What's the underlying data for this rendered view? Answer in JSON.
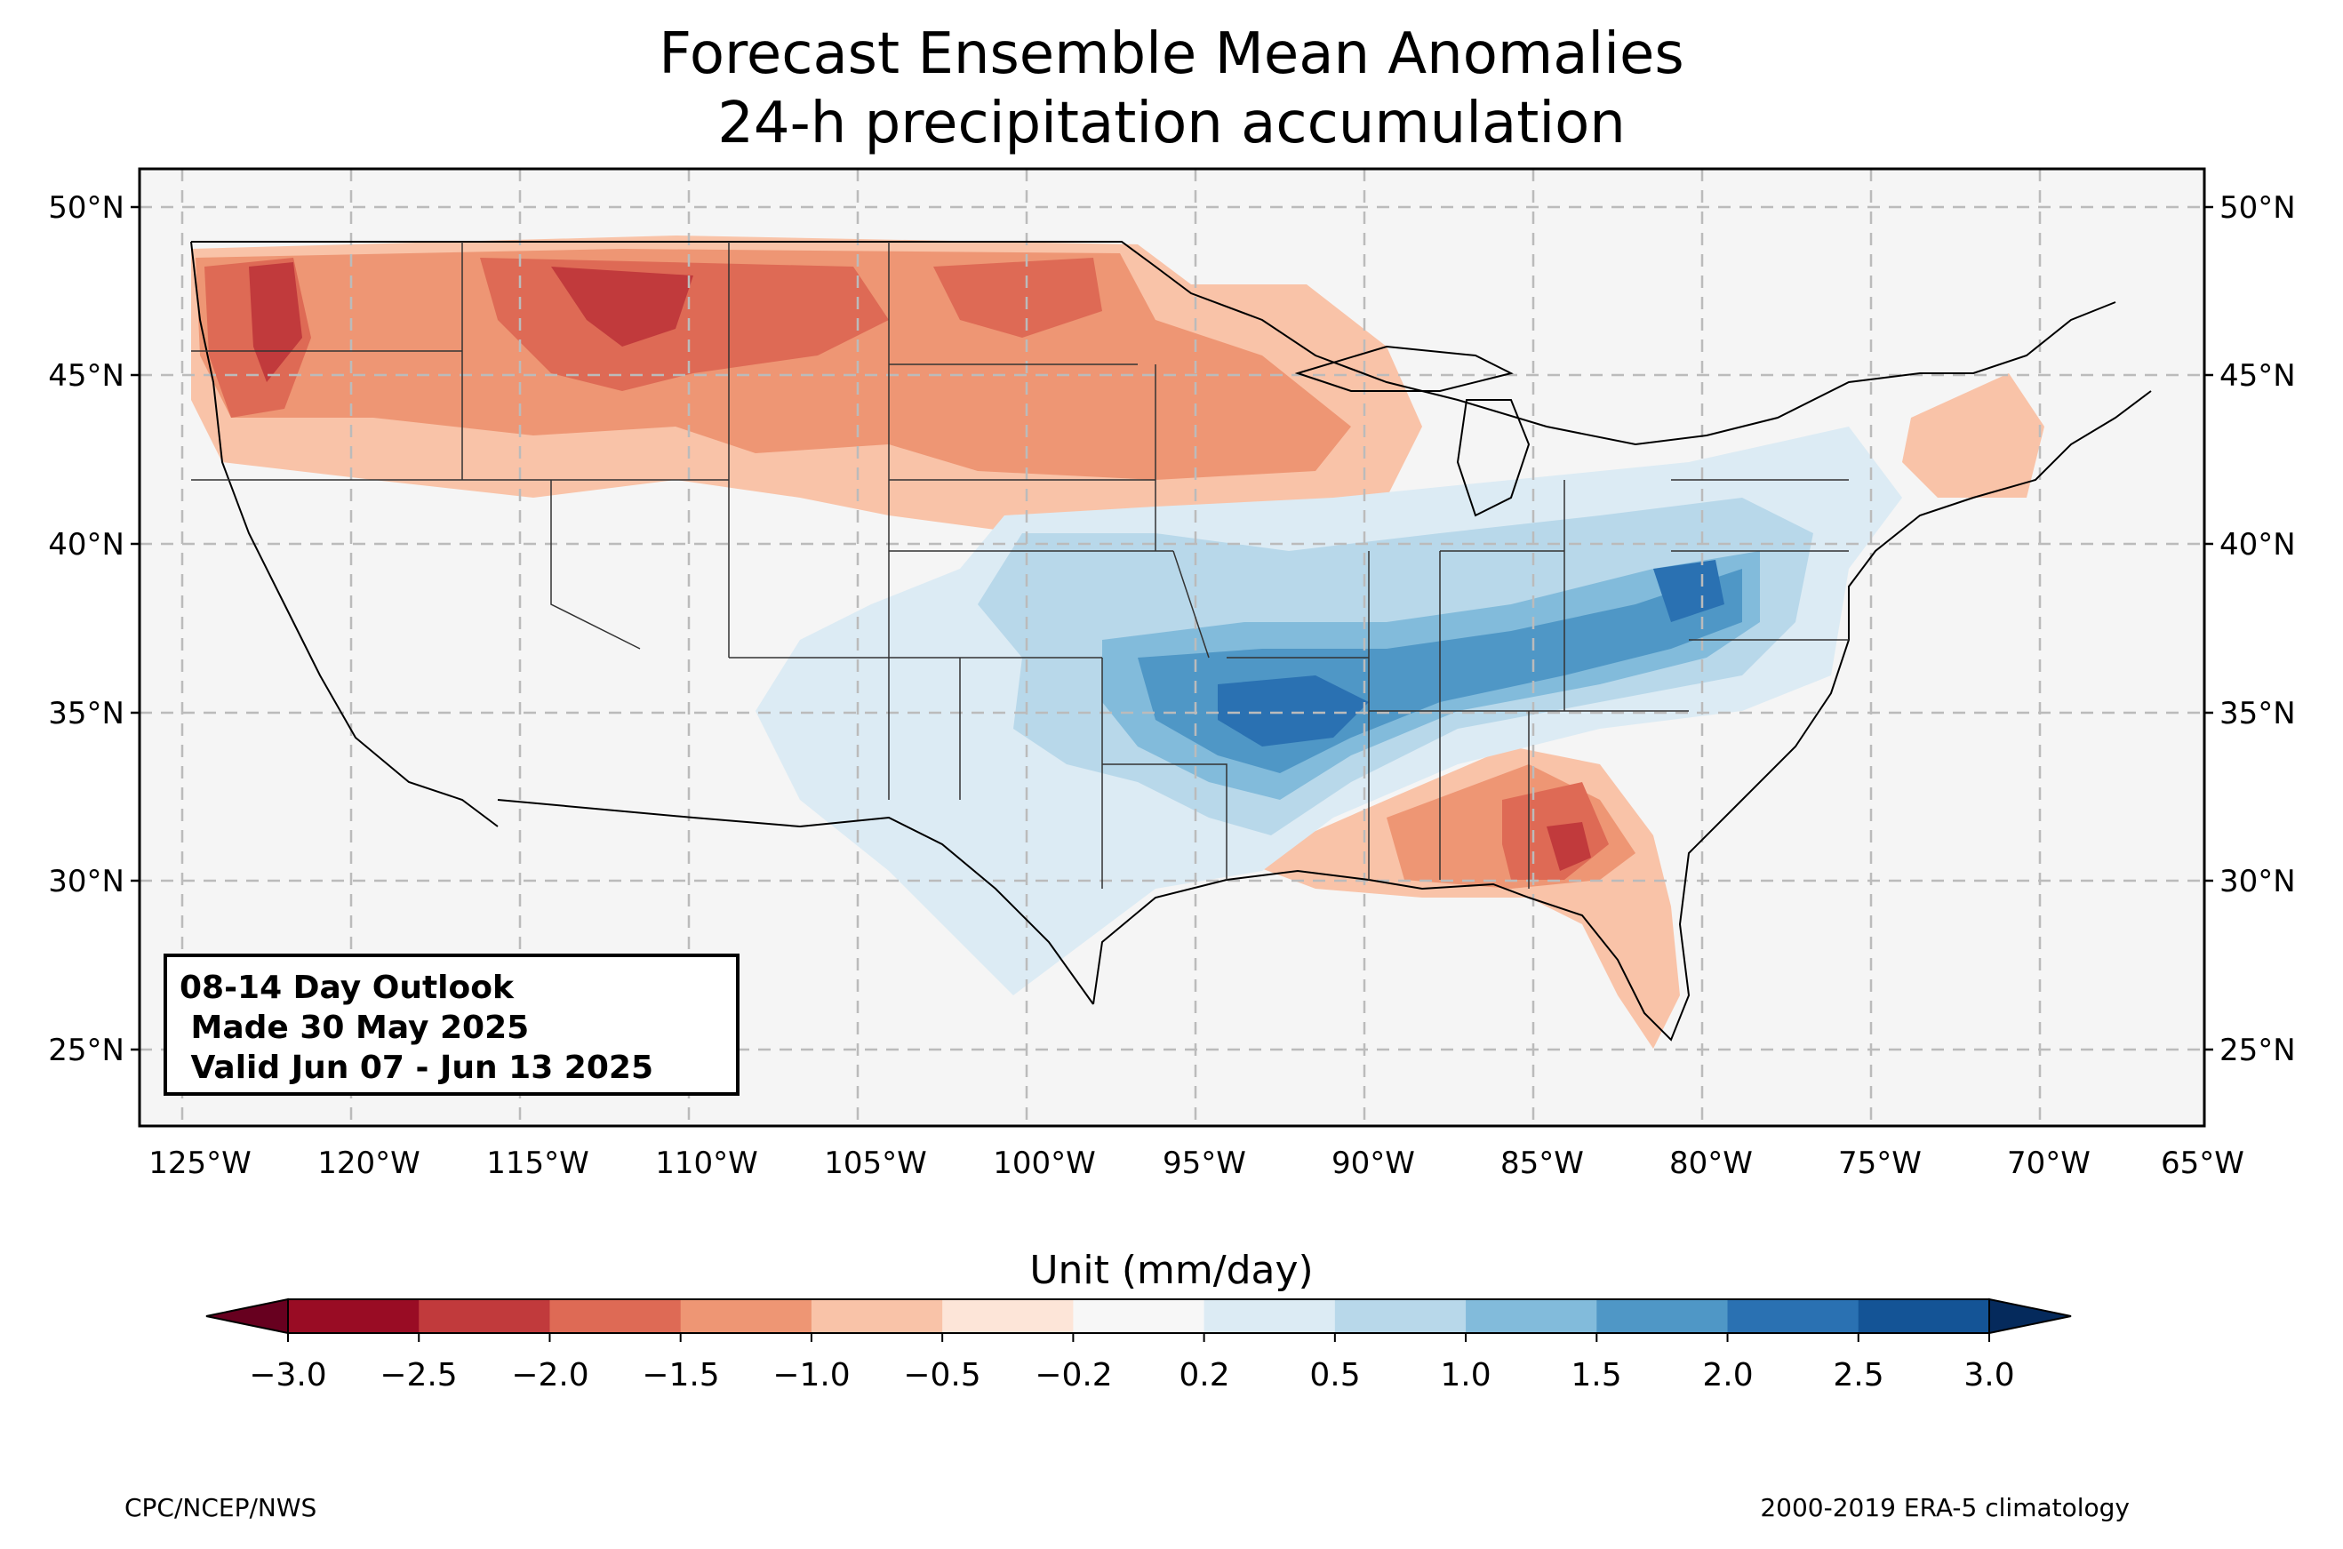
{
  "title": {
    "line1": "Forecast Ensemble Mean Anomalies",
    "line2": "24-h precipitation accumulation"
  },
  "outlook": {
    "line1": "08-14 Day Outlook",
    "line2": " Made 30 May 2025",
    "line3": " Valid Jun 07 - Jun 13 2025"
  },
  "axes": {
    "lat_labels": [
      "50°N",
      "45°N",
      "40°N",
      "35°N",
      "30°N",
      "25°N"
    ],
    "lon_labels": [
      "125°W",
      "120°W",
      "115°W",
      "110°W",
      "105°W",
      "100°W",
      "95°W",
      "90°W",
      "85°W",
      "80°W",
      "75°W",
      "70°W",
      "65°W"
    ],
    "lat_range": [
      22.8,
      51.1
    ],
    "lon_range": [
      -126.3,
      -65.2
    ]
  },
  "colorbar": {
    "title": "Unit (mm/day)",
    "ticks": [
      "−3.0",
      "−2.5",
      "−2.0",
      "−1.5",
      "−1.0",
      "−0.5",
      "−0.2",
      "0.2",
      "0.5",
      "1.0",
      "1.5",
      "2.0",
      "2.5",
      "3.0"
    ],
    "colors": [
      "#990c24",
      "#c13a3c",
      "#de6a55",
      "#ee9674",
      "#f9c3a8",
      "#fde5d8",
      "#f7f7f7",
      "#dcebf4",
      "#b8d8ea",
      "#82bbdb",
      "#4f97c6",
      "#2a71b2",
      "#145496"
    ],
    "under_color": "#67001f",
    "over_color": "#052a5c"
  },
  "credits": {
    "left": "CPC/NCEP/NWS",
    "right": "2000-2019 ERA-5 climatology"
  }
}
